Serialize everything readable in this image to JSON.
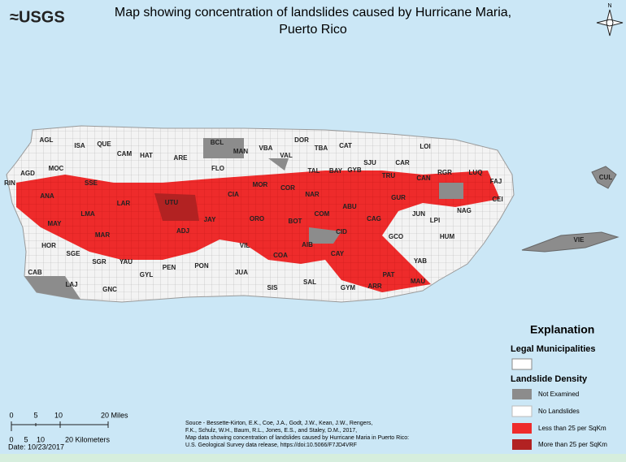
{
  "header": {
    "logo": "≈USGS",
    "title": [
      "Map showing concentration of landslides caused by Hurricane Maria,",
      "Puerto Rico"
    ],
    "north": "N"
  },
  "municipalities": [
    "AGL",
    "ISA",
    "QUE",
    "CAM",
    "HAT",
    "ARE",
    "BCL",
    "MAN",
    "VBA",
    "DOR",
    "TBA",
    "CAT",
    "GYB",
    "SJU",
    "LOI",
    "CAR",
    "TRU",
    "CAN",
    "RGR",
    "LUQ",
    "FAJ",
    "CUL",
    "CEI",
    "NAG",
    "JUN",
    "LPI",
    "HUM",
    "VIE",
    "AGD",
    "MOC",
    "RIN",
    "SSE",
    "LAR",
    "UTU",
    "FLO",
    "CIA",
    "MOR",
    "VAL",
    "COR",
    "TAL",
    "BAY",
    "NAR",
    "GUR",
    "ABU",
    "ANA",
    "LMA",
    "MAY",
    "MAR",
    "ADJ",
    "JAY",
    "ORO",
    "BOT",
    "COM",
    "CAG",
    "CID",
    "GCO",
    "HOR",
    "SGE",
    "SGR",
    "YAU",
    "GYL",
    "PEN",
    "PON",
    "VIL",
    "COA",
    "AIB",
    "CAY",
    "YAB",
    "PAT",
    "MAU",
    "CAB",
    "LAJ",
    "GNC",
    "JUA",
    "SIS",
    "SAL",
    "GYM",
    "ARR"
  ],
  "legend": {
    "title": "Explanation",
    "section1": "Legal Municipalities",
    "section2": "Landslide Density",
    "items": [
      "Not Examined",
      "No Landslides",
      "Less than 25 per SqKm",
      "More than 25 per SqKm"
    ]
  },
  "scale_bar": {
    "miles": [
      "0",
      "5",
      "10",
      "20 Miles"
    ],
    "km": [
      "0",
      "5",
      "10",
      "20 Kilometers"
    ]
  },
  "date": "Date: 10/23/2017",
  "source": [
    "Souce - Bessette-Kirton, E.K., Coe, J.A., Godt, J.W., Kean, J.W., Rengers,",
    "F.K., Schulz, W.H., Baum, R.L., Jones, E.S., and Staley, D.M., 2017,",
    "Map data showing concentration of landslides caused by Hurricane Maria in Puerto Rico:",
    "U.S. Geological Survey data release, https://doi:10.5066/F7JD4VRF"
  ]
}
